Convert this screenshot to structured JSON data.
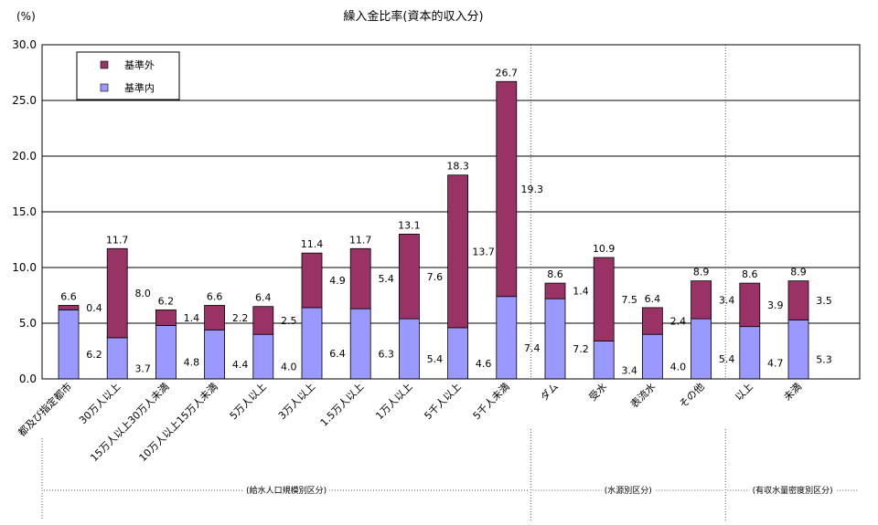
{
  "chart_data": {
    "type": "bar",
    "stacked": true,
    "title": "繰入金比率(資本的収入分)",
    "ylabel": "(%)",
    "ylim": [
      0,
      30
    ],
    "yticks": [
      "0.0",
      "5.0",
      "10.0",
      "15.0",
      "20.0",
      "25.0",
      "30.0"
    ],
    "grid": true,
    "legend_position": "top-left",
    "categories": [
      "都及び指定都市",
      "30万人以上",
      "15万人以上30万人未満",
      "10万人以上15万人未満",
      "5万人以上",
      "3万人以上",
      "1.5万人以上",
      "1万人以上",
      "5千人以上",
      "5千人未満",
      "ダム",
      "受水",
      "表流水",
      "その他",
      "以上",
      "未満"
    ],
    "series": [
      {
        "name": "基準内",
        "color": "#9999ff",
        "values": [
          6.2,
          3.7,
          4.8,
          4.4,
          4.0,
          6.4,
          6.3,
          5.4,
          4.6,
          7.4,
          7.2,
          3.4,
          4.0,
          5.4,
          4.7,
          5.3
        ],
        "labels": [
          "6.2",
          "3.7",
          "4.8",
          "4.4",
          "4.0",
          "6.4",
          "6.3",
          "5.4",
          "4.6",
          "7.4",
          "7.2",
          "3.4",
          "4.0",
          "5.4",
          "4.7",
          "5.3"
        ]
      },
      {
        "name": "基準外",
        "color": "#993366",
        "values": [
          0.4,
          8.0,
          1.4,
          2.2,
          2.5,
          4.9,
          5.4,
          7.6,
          13.7,
          19.3,
          1.4,
          7.5,
          2.4,
          3.4,
          3.9,
          3.5
        ],
        "labels": [
          "0.4",
          "8.0",
          "1.4",
          "2.2",
          "2.5",
          "4.9",
          "5.4",
          "7.6",
          "13.7",
          "19.3",
          "1.4",
          "7.5",
          "2.4",
          "3.4",
          "3.9",
          "3.5"
        ]
      }
    ],
    "totals": [
      "6.6",
      "11.7",
      "6.2",
      "6.6",
      "6.4",
      "11.4",
      "11.7",
      "13.1",
      "18.3",
      "26.7",
      "8.6",
      "10.9",
      "6.4",
      "8.9",
      "8.6",
      "8.9"
    ],
    "groups": [
      {
        "label": "(給水人口規模別区分)",
        "start": 0,
        "end": 9
      },
      {
        "label": "(水源別区分)",
        "start": 10,
        "end": 13
      },
      {
        "label": "(有収水量密度別区分)",
        "start": 14,
        "end": 15
      }
    ]
  }
}
